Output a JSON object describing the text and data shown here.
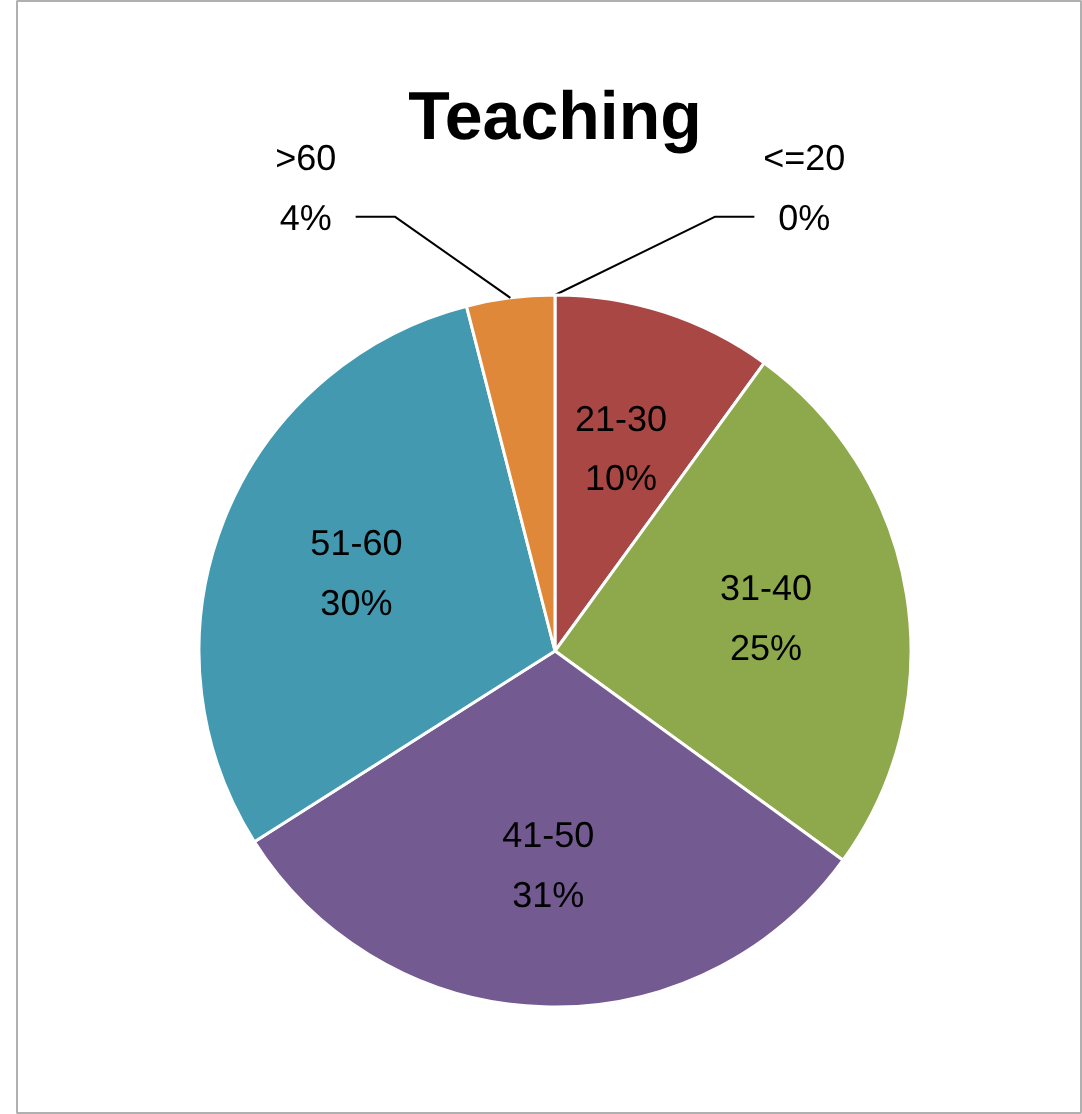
{
  "chart_data": {
    "type": "pie",
    "title": "Teaching",
    "categories": [
      "<=20",
      "21-30",
      "31-40",
      "41-50",
      "51-60",
      ">60"
    ],
    "values": [
      0,
      10,
      25,
      31,
      30,
      4
    ],
    "colors": [
      "#4f81bd",
      "#a94744",
      "#8ea84c",
      "#735a91",
      "#4299b0",
      "#e0883a"
    ],
    "value_labels": [
      "0%",
      "10%",
      "25%",
      "31%",
      "30%",
      "4%"
    ]
  }
}
